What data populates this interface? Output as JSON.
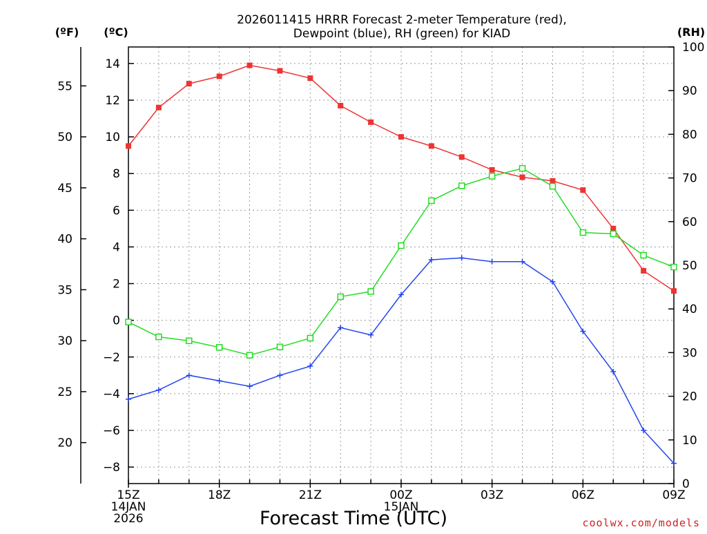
{
  "chart_data": {
    "type": "line",
    "title_lines": [
      "2026011415 HRRR Forecast 2-meter Temperature (red),",
      "Dewpoint (blue), RH (green) for KIAD"
    ],
    "units": {
      "fahrenheit": "(ºF)",
      "celsius": "(ºC)",
      "rh": "(RH)"
    },
    "xlabel": "Forecast Time (UTC)",
    "credit": "coolwx.com/models",
    "x_hours": [
      0,
      1,
      2,
      3,
      4,
      5,
      6,
      7,
      8,
      9,
      10,
      11,
      12,
      13,
      14,
      15,
      16,
      17,
      18
    ],
    "x_ticks": [
      {
        "hour": 0,
        "lines": [
          "15Z",
          "14JAN",
          "2026"
        ]
      },
      {
        "hour": 3,
        "lines": [
          "18Z"
        ]
      },
      {
        "hour": 6,
        "lines": [
          "21Z"
        ]
      },
      {
        "hour": 9,
        "lines": [
          "00Z",
          "15JAN"
        ]
      },
      {
        "hour": 12,
        "lines": [
          "03Z"
        ]
      },
      {
        "hour": 15,
        "lines": [
          "06Z"
        ]
      },
      {
        "hour": 18,
        "lines": [
          "09Z"
        ]
      }
    ],
    "celsius_ticks": [
      "14",
      "12",
      "10",
      "8",
      "6",
      "4",
      "2",
      "0",
      "−2",
      "−4",
      "−6",
      "−8"
    ],
    "celsius_tick_values": [
      14,
      12,
      10,
      8,
      6,
      4,
      2,
      0,
      -2,
      -4,
      -6,
      -8
    ],
    "fahrenheit_ticks": [
      "55",
      "50",
      "45",
      "40",
      "35",
      "30",
      "25",
      "20"
    ],
    "fahrenheit_tick_values": [
      55,
      50,
      45,
      40,
      35,
      30,
      25,
      20
    ],
    "rh_ticks": [
      "100",
      "90",
      "80",
      "70",
      "60",
      "50",
      "40",
      "30",
      "20",
      "10",
      "0"
    ],
    "rh_tick_values": [
      100,
      90,
      80,
      70,
      60,
      50,
      40,
      30,
      20,
      10,
      0
    ],
    "ylim_celsius": [
      -8.9,
      14.9
    ],
    "ylim_rh": [
      0,
      100
    ],
    "grid": true,
    "series": [
      {
        "key": "temperature",
        "axis": "celsius",
        "color": "#ee3333",
        "marker": "filled-square",
        "values": [
          9.5,
          11.6,
          12.9,
          13.3,
          13.9,
          13.6,
          13.2,
          11.7,
          10.8,
          10.0,
          9.5,
          8.9,
          8.2,
          7.8,
          7.6,
          7.1,
          5.0,
          2.7,
          1.6
        ]
      },
      {
        "key": "dewpoint",
        "axis": "celsius",
        "color": "#2244ee",
        "marker": "plus",
        "values": [
          -4.3,
          -3.8,
          -3.0,
          -3.3,
          -3.6,
          -3.0,
          -2.5,
          -0.4,
          -0.8,
          1.4,
          3.3,
          3.4,
          3.2,
          3.2,
          2.1,
          -0.6,
          -2.8,
          -6.0,
          -7.8
        ]
      },
      {
        "key": "rh",
        "axis": "rh",
        "color": "#22dd22",
        "marker": "open-square",
        "values": [
          37,
          33.6,
          32.7,
          31.2,
          29.4,
          31.3,
          33.3,
          42.8,
          44.0,
          54.5,
          64.8,
          68.2,
          70.4,
          72.2,
          68.1,
          57.5,
          57.2,
          52.3,
          49.6
        ]
      }
    ]
  }
}
